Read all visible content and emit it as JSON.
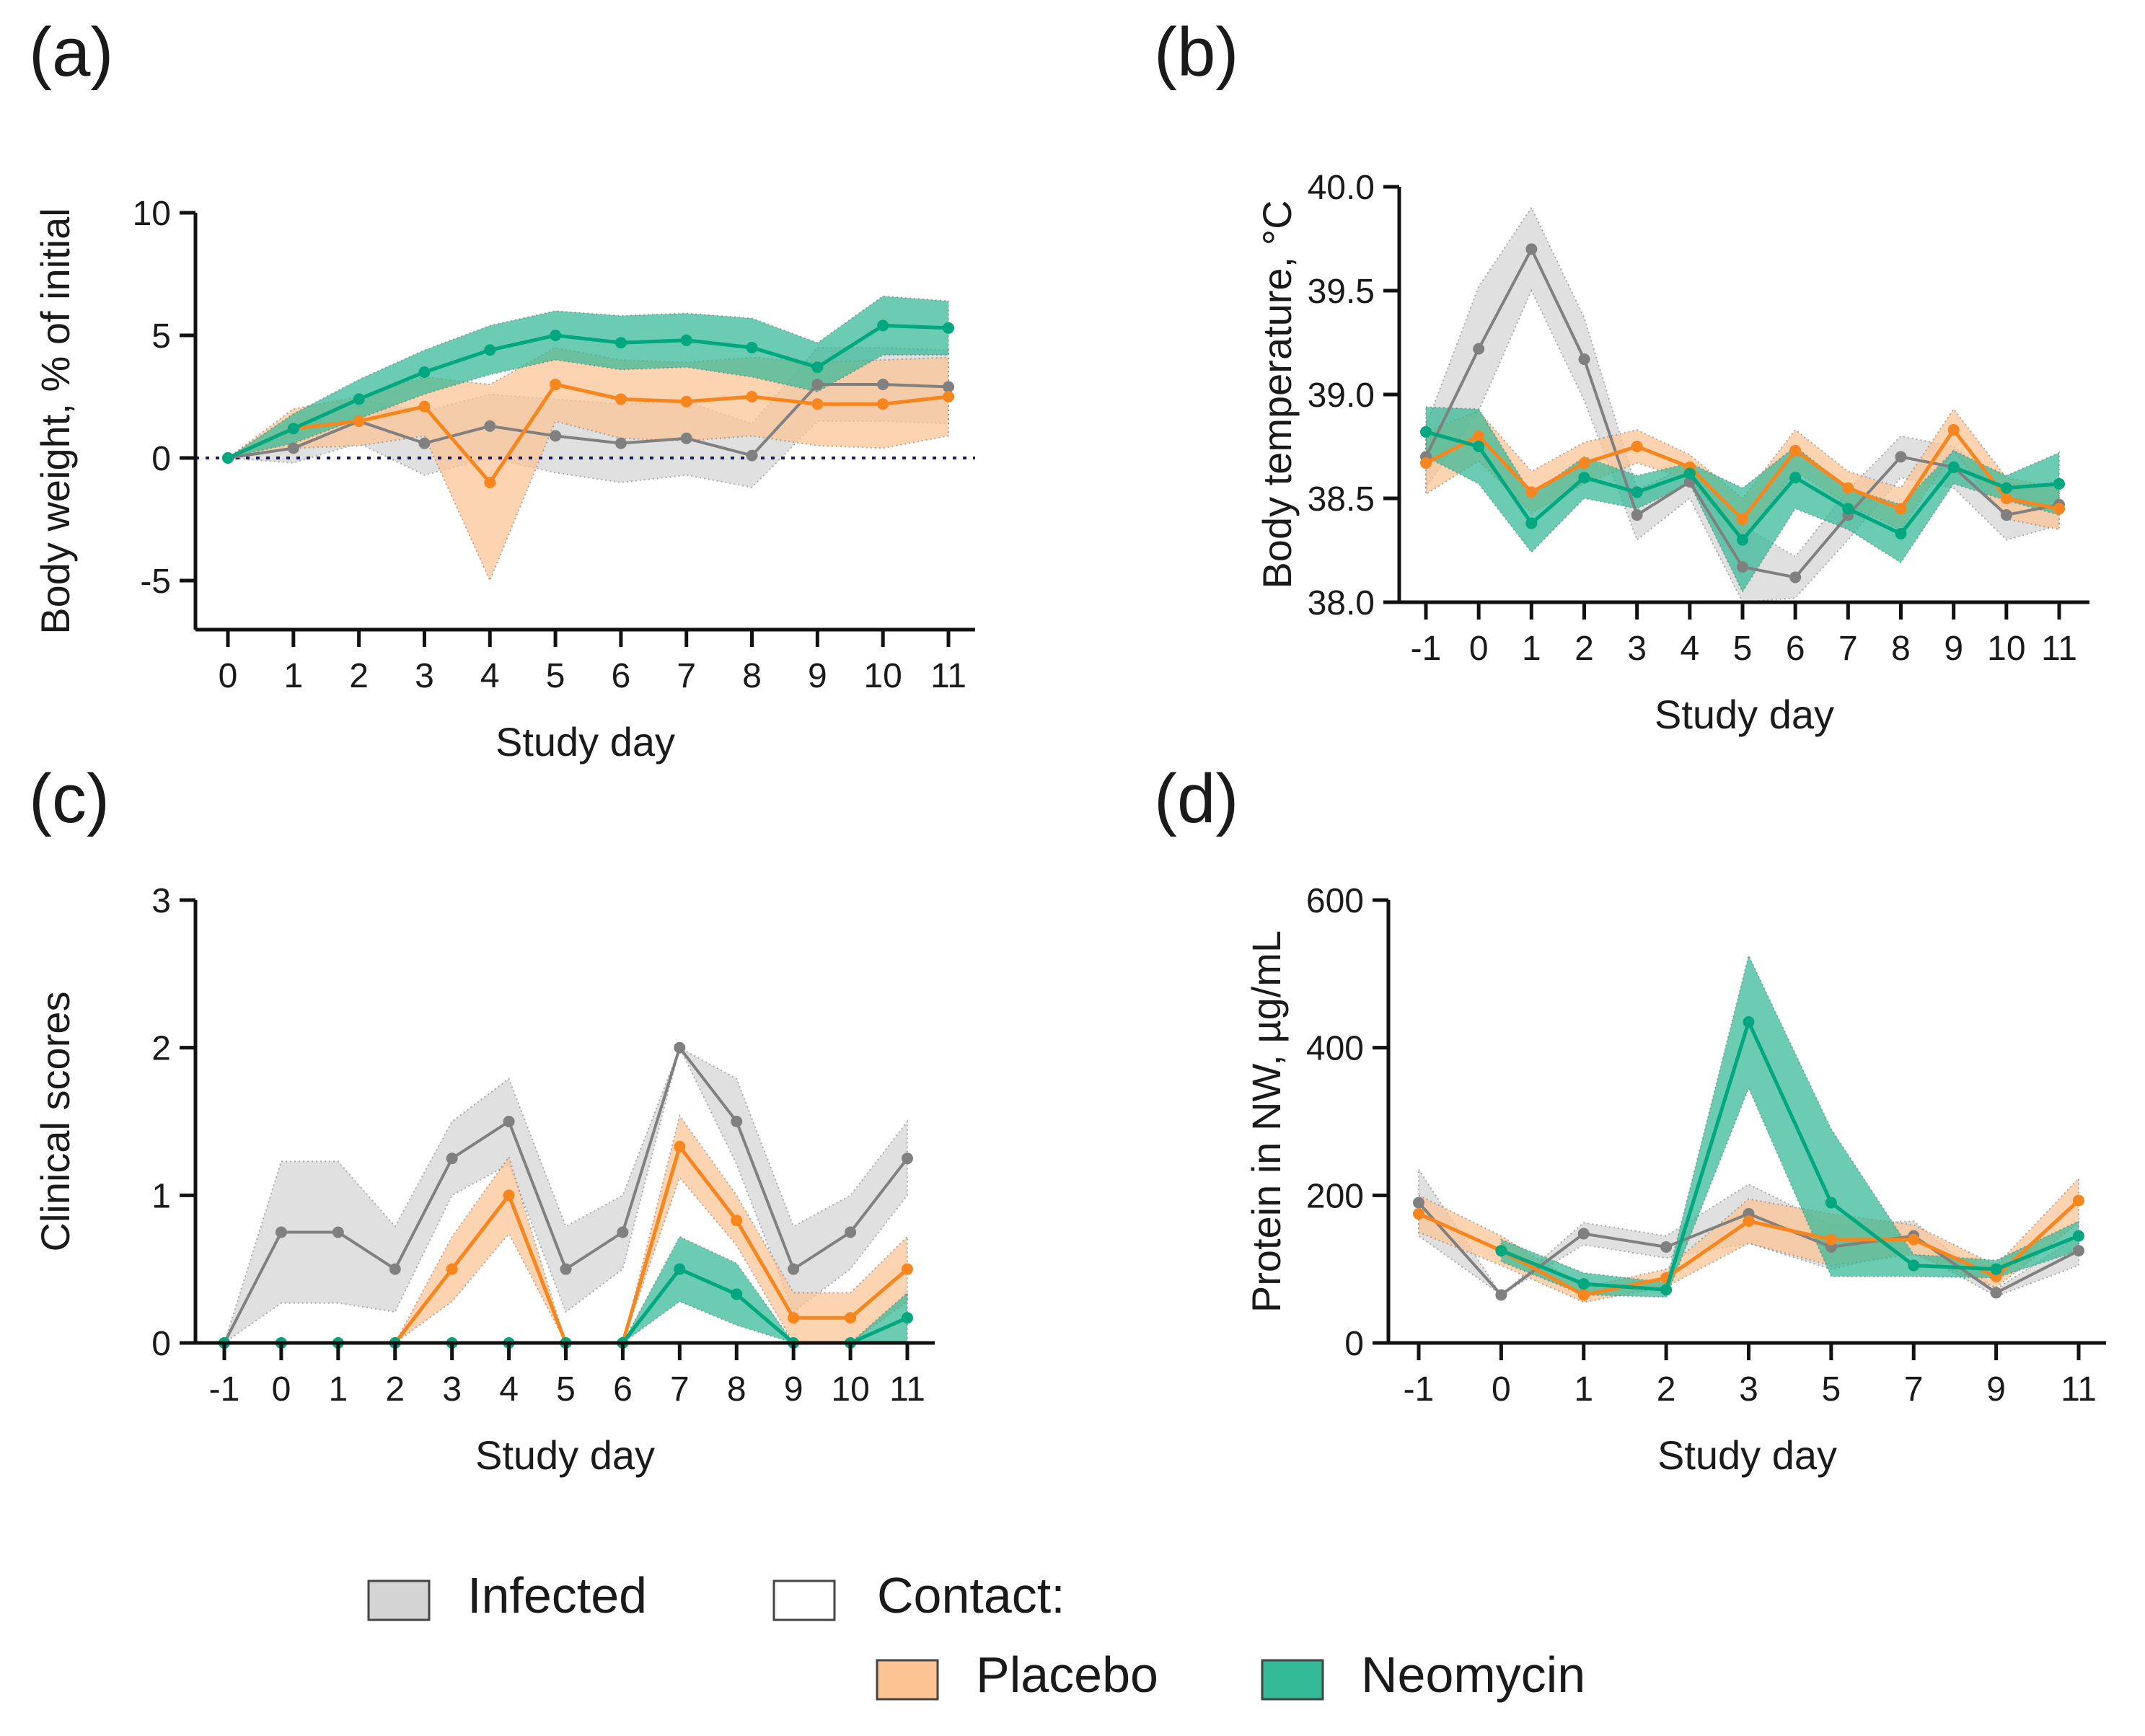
{
  "colors": {
    "Infected": {
      "line": "#808080",
      "band": "#d4d4d4"
    },
    "Placebo": {
      "line": "#f7861f",
      "band": "#fcc393"
    },
    "Neomycin": {
      "line": "#00a77f",
      "band": "#33b995"
    }
  },
  "legend": {
    "infected": "Infected",
    "contact": "Contact:",
    "placebo": "Placebo",
    "neomycin": "Neomycin"
  },
  "chart_data": [
    {
      "panel": "(a)",
      "type": "line",
      "xlabel": "Study day",
      "ylabel": "Body weight, % of initial",
      "x": [
        0,
        1,
        2,
        3,
        4,
        5,
        6,
        7,
        8,
        9,
        10,
        11
      ],
      "xticks": [
        "0",
        "1",
        "2",
        "3",
        "4",
        "5",
        "6",
        "7",
        "8",
        "9",
        "10",
        "11"
      ],
      "ylim": [
        -7,
        10
      ],
      "yticks": [
        10,
        5,
        0,
        -5
      ],
      "reference_line": 0,
      "series": [
        {
          "name": "Infected",
          "values": [
            0,
            0.4,
            1.5,
            0.6,
            1.3,
            0.9,
            0.6,
            0.8,
            0.1,
            3.0,
            3.0,
            2.9
          ],
          "err": [
            0,
            0.6,
            0.9,
            1.3,
            1.3,
            1.5,
            1.6,
            1.5,
            1.3,
            1.5,
            1.5,
            1.5
          ]
        },
        {
          "name": "Placebo",
          "values": [
            0,
            1.2,
            1.5,
            2.1,
            -1.0,
            3.0,
            2.4,
            2.3,
            2.5,
            2.2,
            2.2,
            2.5
          ],
          "err": [
            0,
            0.8,
            1.0,
            1.2,
            4.0,
            1.5,
            1.6,
            1.6,
            1.6,
            1.7,
            1.8,
            1.6
          ]
        },
        {
          "name": "Neomycin",
          "values": [
            0,
            1.2,
            2.4,
            3.5,
            4.4,
            5.0,
            4.7,
            4.8,
            4.5,
            3.7,
            5.4,
            5.3
          ],
          "err": [
            0,
            0.6,
            0.8,
            0.9,
            1.0,
            1.0,
            1.1,
            1.1,
            1.2,
            1.0,
            1.2,
            1.1
          ]
        }
      ]
    },
    {
      "panel": "(b)",
      "type": "line",
      "xlabel": "Study day",
      "ylabel": "Body temperature, °C",
      "x": [
        -1,
        0,
        1,
        2,
        3,
        4,
        5,
        6,
        7,
        8,
        9,
        10,
        11
      ],
      "xticks": [
        "-1",
        "0",
        "1",
        "2",
        "3",
        "4",
        "5",
        "6",
        "7",
        "8",
        "9",
        "10",
        "11"
      ],
      "ylim": [
        38.0,
        40.0
      ],
      "yticks": [
        "40.0",
        "39.5",
        "39.0",
        "38.5",
        "38.0"
      ],
      "series": [
        {
          "name": "Infected",
          "values": [
            38.7,
            39.22,
            39.7,
            39.17,
            38.42,
            38.58,
            38.17,
            38.12,
            38.42,
            38.7,
            38.65,
            38.42,
            38.47
          ],
          "err": [
            0.15,
            0.3,
            0.2,
            0.2,
            0.12,
            0.08,
            0.2,
            0.1,
            0.12,
            0.1,
            0.1,
            0.12,
            0.1
          ]
        },
        {
          "name": "Placebo",
          "values": [
            38.67,
            38.8,
            38.53,
            38.67,
            38.75,
            38.65,
            38.4,
            38.73,
            38.55,
            38.45,
            38.83,
            38.5,
            38.45
          ],
          "err": [
            0.15,
            0.12,
            0.1,
            0.1,
            0.08,
            0.06,
            0.1,
            0.1,
            0.08,
            0.1,
            0.1,
            0.1,
            0.1
          ]
        },
        {
          "name": "Neomycin",
          "values": [
            38.82,
            38.75,
            38.38,
            38.6,
            38.53,
            38.62,
            38.3,
            38.6,
            38.45,
            38.33,
            38.65,
            38.55,
            38.57
          ],
          "err": [
            0.12,
            0.18,
            0.14,
            0.1,
            0.08,
            0.05,
            0.25,
            0.15,
            0.1,
            0.14,
            0.08,
            0.06,
            0.15
          ]
        }
      ]
    },
    {
      "panel": "(c)",
      "type": "line",
      "xlabel": "Study day",
      "ylabel": "Clinical scores",
      "x": [
        -1,
        0,
        1,
        2,
        3,
        4,
        5,
        6,
        7,
        8,
        9,
        10,
        11
      ],
      "xticks": [
        "-1",
        "0",
        "1",
        "2",
        "3",
        "4",
        "5",
        "6",
        "7",
        "8",
        "9",
        "10",
        "11"
      ],
      "ylim": [
        0,
        3
      ],
      "yticks": [
        3,
        2,
        1,
        0
      ],
      "series": [
        {
          "name": "Infected",
          "values": [
            0,
            0.75,
            0.75,
            0.5,
            1.25,
            1.5,
            0.5,
            0.75,
            2.0,
            1.5,
            0.5,
            0.75,
            1.25
          ],
          "err": [
            0,
            0.48,
            0.48,
            0.29,
            0.25,
            0.29,
            0.29,
            0.25,
            0,
            0.29,
            0.29,
            0.25,
            0.25
          ]
        },
        {
          "name": "Placebo",
          "values": [
            0,
            0,
            0,
            0,
            0.5,
            1.0,
            0,
            0,
            1.33,
            0.83,
            0.17,
            0.17,
            0.5
          ],
          "err": [
            0,
            0,
            0,
            0,
            0.22,
            0.26,
            0,
            0,
            0.21,
            0.17,
            0.17,
            0.17,
            0.22
          ]
        },
        {
          "name": "Neomycin",
          "values": [
            0,
            0,
            0,
            0,
            0,
            0,
            0,
            0,
            0.5,
            0.33,
            0,
            0,
            0.17
          ],
          "err": [
            0,
            0,
            0,
            0,
            0,
            0,
            0,
            0,
            0.22,
            0.21,
            0,
            0,
            0.17
          ]
        }
      ]
    },
    {
      "panel": "(d)",
      "type": "line",
      "xlabel": "Study day",
      "ylabel": "Protein in NW, µg/mL",
      "x": [
        "-1",
        "0",
        "1",
        "2",
        "3",
        "5",
        "7",
        "9",
        "11"
      ],
      "xticks": [
        "-1",
        "0",
        "1",
        "2",
        "3",
        "5",
        "7",
        "9",
        "11"
      ],
      "ylim": [
        0,
        600
      ],
      "yticks": [
        600,
        400,
        200,
        0
      ],
      "series": [
        {
          "name": "Infected",
          "values": [
            190,
            65,
            148,
            130,
            175,
            130,
            145,
            68,
            125
          ],
          "err": [
            45,
            0,
            15,
            15,
            40,
            30,
            20,
            5,
            20
          ]
        },
        {
          "name": "Placebo",
          "values": [
            175,
            125,
            65,
            88,
            165,
            140,
            140,
            90,
            193
          ],
          "err": [
            25,
            20,
            10,
            12,
            30,
            35,
            20,
            15,
            30
          ]
        },
        {
          "name": "Neomycin",
          "values": [
            null,
            125,
            80,
            72,
            435,
            190,
            105,
            100,
            145
          ],
          "err": [
            0,
            15,
            15,
            10,
            90,
            100,
            15,
            12,
            20
          ]
        }
      ]
    }
  ]
}
